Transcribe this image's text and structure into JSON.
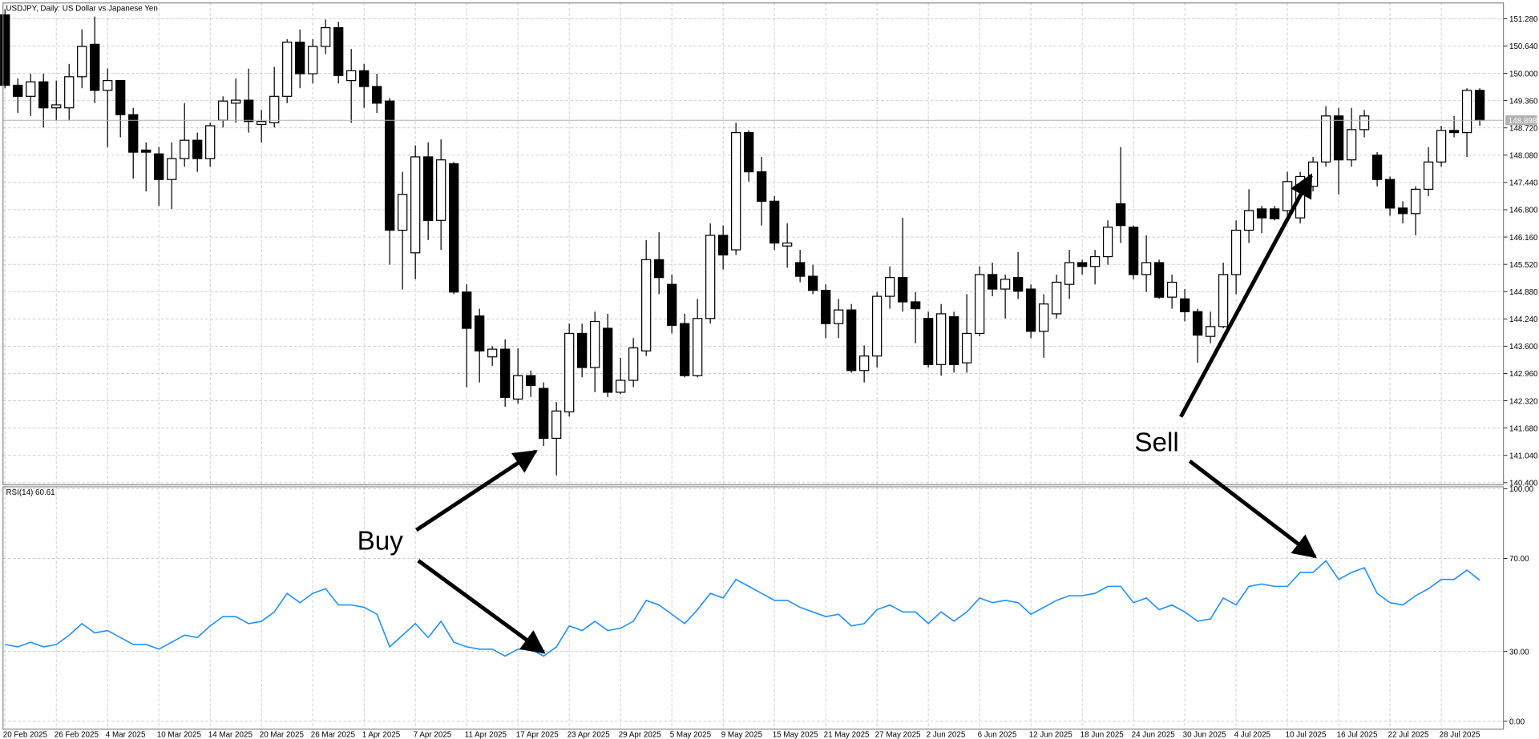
{
  "chart_data": [
    {
      "type": "candlestick",
      "title": "USDJPY, Daily:  US Dollar vs Japanese Yen",
      "categories": [
        "20 Feb 2025",
        null,
        null,
        null,
        "26 Feb 2025",
        null,
        null,
        null,
        "4 Mar 2025",
        null,
        null,
        null,
        "10 Mar 2025",
        null,
        null,
        null,
        "14 Mar 2025",
        null,
        null,
        null,
        "20 Mar 2025",
        null,
        null,
        null,
        "26 Mar 2025",
        null,
        null,
        null,
        "1 Apr 2025",
        null,
        null,
        null,
        "7 Apr 2025",
        null,
        null,
        null,
        "11 Apr 2025",
        null,
        null,
        null,
        "17 Apr 2025",
        null,
        null,
        null,
        "23 Apr 2025",
        null,
        null,
        null,
        "29 Apr 2025",
        null,
        null,
        null,
        "5 May 2025",
        null,
        null,
        null,
        "9 May 2025",
        null,
        null,
        null,
        "15 May 2025",
        null,
        null,
        null,
        "21 May 2025",
        null,
        null,
        null,
        "27 May 2025",
        null,
        null,
        null,
        "2 Jun 2025",
        null,
        null,
        null,
        "6 Jun 2025",
        null,
        null,
        null,
        "12 Jun 2025",
        null,
        null,
        null,
        "18 Jun 2025",
        null,
        null,
        null,
        "24 Jun 2025",
        null,
        null,
        null,
        "30 Jun 2025",
        null,
        null,
        null,
        "4 Jul 2025",
        null,
        null,
        null,
        "10 Jul 2025",
        null,
        null,
        null,
        "16 Jul 2025",
        null,
        null,
        null,
        "22 Jul 2025",
        null,
        null,
        null,
        "28 Jul 2025",
        null,
        null,
        null
      ],
      "open": [
        151.37,
        149.72,
        149.46,
        149.8,
        149.19,
        149.19,
        149.92,
        150.68,
        149.6,
        149.83,
        149.03,
        148.2,
        148.11,
        147.51,
        148.0,
        148.43,
        148.0,
        148.9,
        149.3,
        149.37,
        148.8,
        148.84,
        149.46,
        150.73,
        149.99,
        150.63,
        151.07,
        149.83,
        150.06,
        149.69,
        149.35,
        146.32,
        145.79,
        148.04,
        146.55,
        147.88,
        144.87,
        144.31,
        143.35,
        143.53,
        142.36,
        142.91,
        142.61,
        141.44,
        142.06,
        143.9,
        143.1,
        144.02,
        142.52,
        142.8,
        143.49,
        145.63,
        145.05,
        144.13,
        142.91,
        144.25,
        146.2,
        145.86,
        148.61,
        147.69,
        147.0,
        145.95,
        145.56,
        145.24,
        144.91,
        144.13,
        144.45,
        143.03,
        143.37,
        144.77,
        145.21,
        144.64,
        144.25,
        143.17,
        144.29,
        143.21,
        143.9,
        145.28,
        144.94,
        145.21,
        144.94,
        143.95,
        144.36,
        145.05,
        145.56,
        145.47,
        145.7,
        146.94,
        146.39,
        145.28,
        145.56,
        144.75,
        144.71,
        144.41,
        143.83,
        144.06,
        145.28,
        146.32,
        146.82,
        146.82,
        146.78,
        146.61,
        147.35,
        147.92,
        149.0,
        147.97,
        148.68,
        148.08,
        147.51,
        146.84,
        146.71,
        147.28,
        147.92,
        148.66,
        148.61,
        149.6
      ],
      "high": [
        151.5,
        149.88,
        149.99,
        149.99,
        149.83,
        150.22,
        151.03,
        151.33,
        150.11,
        149.83,
        149.19,
        148.38,
        148.27,
        148.38,
        149.3,
        148.61,
        148.84,
        149.46,
        149.88,
        150.11,
        149.14,
        150.15,
        150.8,
        151.03,
        150.8,
        151.26,
        151.21,
        150.57,
        150.22,
        149.99,
        149.42,
        147.69,
        148.31,
        148.38,
        148.45,
        147.92,
        145.05,
        144.48,
        143.6,
        143.76,
        143.55,
        143.03,
        142.75,
        142.29,
        144.13,
        144.13,
        144.41,
        144.36,
        143.33,
        143.79,
        146.09,
        146.27,
        145.28,
        144.36,
        144.71,
        146.48,
        146.43,
        148.84,
        148.66,
        148.04,
        147.12,
        146.48,
        145.86,
        145.51,
        145.05,
        144.71,
        144.59,
        143.62,
        144.87,
        145.47,
        146.61,
        144.87,
        144.41,
        144.59,
        144.41,
        144.82,
        145.47,
        145.56,
        145.28,
        145.81,
        145.05,
        144.82,
        145.28,
        145.86,
        145.63,
        145.86,
        146.55,
        148.27,
        146.43,
        146.2,
        145.63,
        145.28,
        144.94,
        144.48,
        144.41,
        145.56,
        146.55,
        147.28,
        146.89,
        146.89,
        147.69,
        147.69,
        148.04,
        149.23,
        149.19,
        149.19,
        149.14,
        148.15,
        147.58,
        147.0,
        147.35,
        148.27,
        148.77,
        149.0,
        149.65,
        149.65
      ],
      "low": [
        149.65,
        149.07,
        149.0,
        148.73,
        148.89,
        148.89,
        149.65,
        149.3,
        148.27,
        148.5,
        147.53,
        147.23,
        146.89,
        146.82,
        147.81,
        147.69,
        147.81,
        148.73,
        148.84,
        148.61,
        148.38,
        148.73,
        149.3,
        149.65,
        149.76,
        150.45,
        149.76,
        148.84,
        149.19,
        149.07,
        145.51,
        144.93,
        145.17,
        146.09,
        145.86,
        144.82,
        142.64,
        142.75,
        143.14,
        142.18,
        142.25,
        142.41,
        141.26,
        140.57,
        141.95,
        142.87,
        142.52,
        142.41,
        142.48,
        142.64,
        143.37,
        144.82,
        143.9,
        142.87,
        142.87,
        144.13,
        145.4,
        145.74,
        147.46,
        146.43,
        145.86,
        145.44,
        145.1,
        144.82,
        143.79,
        143.79,
        142.98,
        142.75,
        143.1,
        144.48,
        144.41,
        143.67,
        143.1,
        142.91,
        142.98,
        142.98,
        143.83,
        144.77,
        144.25,
        144.71,
        143.79,
        143.33,
        144.25,
        144.71,
        145.28,
        145.05,
        145.51,
        146.02,
        145.17,
        144.87,
        144.71,
        144.48,
        144.18,
        143.21,
        143.67,
        144.02,
        144.82,
        146.02,
        146.25,
        146.55,
        146.55,
        146.48,
        147.23,
        147.81,
        147.16,
        147.81,
        148.5,
        147.35,
        146.66,
        146.48,
        146.2,
        147.12,
        147.81,
        148.5,
        148.04,
        148.77
      ],
      "close": [
        149.72,
        149.46,
        149.8,
        149.19,
        149.26,
        149.92,
        150.63,
        149.6,
        149.83,
        149.03,
        148.15,
        148.15,
        147.51,
        148.0,
        148.43,
        148.0,
        148.77,
        149.35,
        149.37,
        148.87,
        148.87,
        149.46,
        150.73,
        149.99,
        150.63,
        151.07,
        149.95,
        150.06,
        149.69,
        149.3,
        146.32,
        147.16,
        148.04,
        146.55,
        147.97,
        144.87,
        144.02,
        143.49,
        143.53,
        142.4,
        142.91,
        142.68,
        141.44,
        142.08,
        143.9,
        143.1,
        144.18,
        142.52,
        142.8,
        143.56,
        145.63,
        145.21,
        144.09,
        142.91,
        144.25,
        146.2,
        145.74,
        148.61,
        147.69,
        147.0,
        146.02,
        146.02,
        145.24,
        144.91,
        144.13,
        144.45,
        143.03,
        143.37,
        144.77,
        145.21,
        144.64,
        144.48,
        143.17,
        144.36,
        143.17,
        143.9,
        145.28,
        144.94,
        145.17,
        144.89,
        143.95,
        144.59,
        145.1,
        145.56,
        145.47,
        145.7,
        146.39,
        146.43,
        145.28,
        145.56,
        144.75,
        145.1,
        144.41,
        143.86,
        144.06,
        145.28,
        146.32,
        146.78,
        146.61,
        146.59,
        147.46,
        147.58,
        147.92,
        149.0,
        147.97,
        148.68,
        149.0,
        147.51,
        146.84,
        146.71,
        147.28,
        147.92,
        148.66,
        148.61,
        149.6,
        148.9
      ],
      "up_color": "#ffffff",
      "down_color": "#000000",
      "ylim": [
        140.35,
        151.65
      ],
      "yticks": [
        {
          "value": 151.28,
          "label": "151.280"
        },
        {
          "value": 150.64,
          "label": "150.640"
        },
        {
          "value": 150.0,
          "label": "150.000"
        },
        {
          "value": 149.36,
          "label": "149.360"
        },
        {
          "value": 148.72,
          "label": "148.720"
        },
        {
          "value": 148.08,
          "label": "148.080"
        },
        {
          "value": 147.44,
          "label": "147.440"
        },
        {
          "value": 146.8,
          "label": "146.800"
        },
        {
          "value": 146.16,
          "label": "146.160"
        },
        {
          "value": 145.52,
          "label": "145.520"
        },
        {
          "value": 144.88,
          "label": "144.880"
        },
        {
          "value": 144.24,
          "label": "144.240"
        },
        {
          "value": 143.6,
          "label": "143.600"
        },
        {
          "value": 142.96,
          "label": "142.960"
        },
        {
          "value": 142.32,
          "label": "142.320"
        },
        {
          "value": 141.68,
          "label": "141.680"
        },
        {
          "value": 141.04,
          "label": "141.040"
        },
        {
          "value": 140.4,
          "label": "140.400"
        }
      ],
      "current_price": 148.898,
      "grid": true,
      "annotations": [
        "Buy",
        "Sell"
      ]
    },
    {
      "type": "line",
      "title": "RSI(14) 60.61",
      "values": [
        33,
        32,
        34,
        32,
        33,
        37,
        42,
        38,
        39,
        36,
        33,
        33,
        31,
        34,
        37,
        36,
        41,
        45,
        45,
        42,
        43,
        47,
        55,
        51,
        55,
        57,
        50,
        50,
        49,
        46,
        32,
        37,
        42,
        36,
        43,
        34,
        32,
        31,
        31,
        28,
        31,
        31,
        28,
        32,
        41,
        39,
        43,
        39,
        40,
        43,
        52,
        50,
        46,
        42,
        48,
        55,
        53,
        61,
        58,
        55,
        52,
        52,
        49,
        47,
        45,
        46,
        41,
        42,
        48,
        50,
        47,
        47,
        42,
        47,
        43,
        47,
        53,
        51,
        52,
        51,
        46,
        49,
        52,
        54,
        54,
        55,
        58,
        58,
        51,
        53,
        48,
        50,
        47,
        43,
        44,
        53,
        50,
        58,
        59,
        58,
        58,
        64,
        64,
        69,
        61,
        64,
        66,
        55,
        51,
        50,
        54,
        57,
        61,
        61,
        65,
        60.61
      ],
      "color": "#1e90ff",
      "ylim": [
        -3.4,
        100.85
      ],
      "yticks": [
        {
          "value": 100,
          "label": "100.00"
        },
        {
          "value": 70,
          "label": "70.00"
        },
        {
          "value": 30,
          "label": "30.00"
        },
        {
          "value": 0,
          "label": "0.00"
        }
      ],
      "grid": true
    }
  ]
}
